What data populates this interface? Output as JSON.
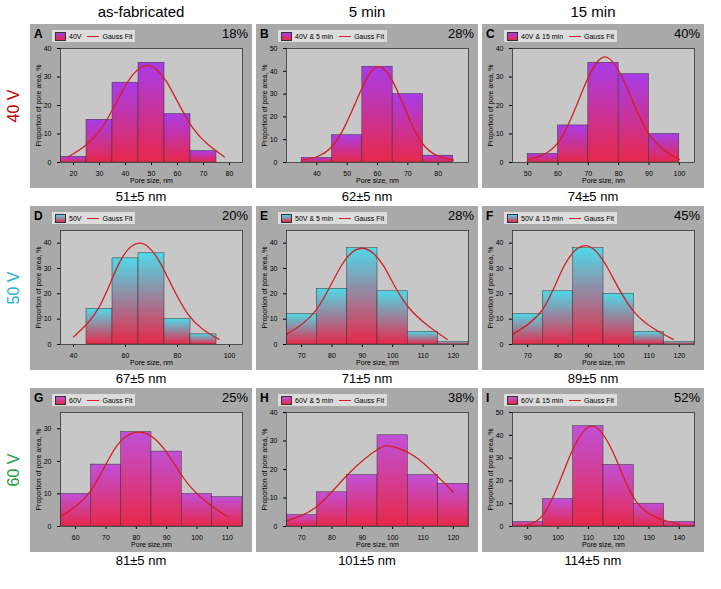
{
  "columns": [
    "as-fabricated",
    "5 min",
    "15 min"
  ],
  "rows": [
    {
      "name": "40 V",
      "color": "#c00000"
    },
    {
      "name": "50 V",
      "color": "#20b0d0"
    },
    {
      "name": "60 V",
      "color": "#20a040"
    }
  ],
  "chart_data": [
    {
      "type": "histogram",
      "label": "A",
      "x_label": "Pore size, nm",
      "y_label": "Proportion of pore area, %",
      "bins": [
        15,
        25,
        35,
        45,
        55,
        65,
        75
      ],
      "xlim": [
        15,
        85
      ],
      "xticks": [
        20,
        30,
        40,
        50,
        60,
        70,
        80
      ],
      "ylim": [
        0,
        40
      ],
      "yticks": [
        0,
        10,
        20,
        30,
        40
      ],
      "legend": "top",
      "series": [
        {
          "name": "40V",
          "type": "bar",
          "color": "#a83ce8",
          "values": [
            2,
            15,
            28,
            35,
            17,
            4
          ]
        },
        {
          "name": "Gauss Fit",
          "type": "line",
          "color": "#d42020",
          "x": [
            18,
            30,
            40,
            48,
            56,
            66,
            78
          ],
          "values": [
            2,
            11,
            27,
            34,
            28,
            12,
            2
          ]
        }
      ],
      "annotation": "18%",
      "caption": "51±5 nm"
    },
    {
      "type": "histogram",
      "label": "B",
      "x_label": "Pore size, nm",
      "y_label": "Proportion of pore area, %",
      "bins": [
        35,
        45,
        55,
        65,
        75,
        85
      ],
      "xlim": [
        30,
        90
      ],
      "xticks": [
        40,
        50,
        60,
        70,
        80
      ],
      "ylim": [
        0,
        50
      ],
      "yticks": [
        0,
        10,
        20,
        30,
        40,
        50
      ],
      "legend": "top",
      "series": [
        {
          "name": "40V & 5 min",
          "type": "bar",
          "color": "#a83ce8",
          "values": [
            2,
            12,
            42,
            30,
            3
          ]
        },
        {
          "name": "Gauss Fit",
          "type": "line",
          "color": "#d42020",
          "x": [
            35,
            45,
            53,
            60,
            67,
            75,
            85
          ],
          "values": [
            1,
            7,
            27,
            42,
            30,
            8,
            1
          ]
        }
      ],
      "annotation": "28%",
      "caption": "62±5 nm"
    },
    {
      "type": "histogram",
      "label": "C",
      "x_label": "Pore size, nm",
      "y_label": "Proportion of pore area, %",
      "bins": [
        50,
        60,
        70,
        80,
        90,
        100
      ],
      "xlim": [
        45,
        105
      ],
      "xticks": [
        50,
        60,
        70,
        80,
        90,
        100
      ],
      "ylim": [
        0,
        40
      ],
      "yticks": [
        0,
        10,
        20,
        30,
        40
      ],
      "legend": "top",
      "series": [
        {
          "name": "40V & 15 min",
          "type": "bar",
          "color": "#a83ce8",
          "values": [
            3,
            13,
            35,
            31,
            10
          ]
        },
        {
          "name": "Gauss Fit",
          "type": "line",
          "color": "#d42020",
          "x": [
            50,
            60,
            68,
            75,
            82,
            90,
            100
          ],
          "values": [
            1,
            7,
            25,
            37,
            28,
            10,
            1
          ]
        }
      ],
      "annotation": "40%",
      "caption": "74±5 nm"
    },
    {
      "type": "histogram",
      "label": "D",
      "x_label": "Pore size, nm",
      "y_label": "Proportion of pore area, %",
      "bins": [
        45,
        55,
        65,
        75,
        85,
        95
      ],
      "xlim": [
        35,
        105
      ],
      "xticks": [
        40,
        60,
        80,
        100
      ],
      "ylim": [
        0,
        45
      ],
      "yticks": [
        0,
        10,
        20,
        30,
        40
      ],
      "legend": "top",
      "series": [
        {
          "name": "50V",
          "type": "bar",
          "color": "#4fd8e8",
          "values": [
            14,
            34,
            36,
            10,
            4
          ]
        },
        {
          "name": "Gauss Fit",
          "type": "line",
          "color": "#d42020",
          "x": [
            40,
            50,
            58,
            66,
            74,
            84,
            96
          ],
          "values": [
            3,
            15,
            33,
            40,
            31,
            12,
            2
          ]
        }
      ],
      "annotation": "20%",
      "caption": "67±5 nm"
    },
    {
      "type": "histogram",
      "label": "E",
      "x_label": "Pore size, nm",
      "y_label": "Proportion of pore area, %",
      "bins": [
        65,
        75,
        85,
        95,
        105,
        115,
        125
      ],
      "xlim": [
        65,
        125
      ],
      "xticks": [
        70,
        80,
        90,
        100,
        110,
        120
      ],
      "ylim": [
        0,
        45
      ],
      "yticks": [
        0,
        10,
        20,
        30,
        40
      ],
      "legend": "top",
      "series": [
        {
          "name": "50V & 5 min",
          "type": "bar",
          "color": "#4fd8e8",
          "values": [
            12,
            22,
            38,
            21,
            5,
            1
          ]
        },
        {
          "name": "Gauss Fit",
          "type": "line",
          "color": "#d42020",
          "x": [
            65,
            75,
            83,
            90,
            97,
            105,
            118
          ],
          "values": [
            4,
            14,
            31,
            38,
            31,
            15,
            2
          ]
        }
      ],
      "annotation": "28%",
      "caption": "71±5 nm"
    },
    {
      "type": "histogram",
      "label": "F",
      "x_label": "Pore size, nm",
      "y_label": "Proportion of pore area, %",
      "bins": [
        65,
        75,
        85,
        95,
        105,
        115,
        125
      ],
      "xlim": [
        65,
        125
      ],
      "xticks": [
        70,
        80,
        90,
        100,
        110,
        120
      ],
      "ylim": [
        0,
        45
      ],
      "yticks": [
        0,
        10,
        20,
        30,
        40
      ],
      "legend": "top",
      "series": [
        {
          "name": "50V & 15 min",
          "type": "bar",
          "color": "#4fd8e8",
          "values": [
            12,
            21,
            38,
            20,
            5,
            1
          ]
        },
        {
          "name": "Gauss Fit",
          "type": "line",
          "color": "#d42020",
          "x": [
            65,
            75,
            82,
            89,
            96,
            105,
            118
          ],
          "values": [
            4,
            14,
            31,
            39,
            31,
            13,
            2
          ]
        }
      ],
      "annotation": "45%",
      "caption": "89±5 nm"
    },
    {
      "type": "histogram",
      "label": "G",
      "x_label": "Pore size,nm",
      "y_label": "Proportion of pore area, %",
      "bins": [
        55,
        65,
        75,
        85,
        95,
        105,
        115
      ],
      "xlim": [
        55,
        115
      ],
      "xticks": [
        60,
        70,
        80,
        90,
        100,
        110
      ],
      "ylim": [
        0,
        35
      ],
      "yticks": [
        0,
        10,
        20,
        30
      ],
      "legend": "top",
      "series": [
        {
          "name": "60V",
          "type": "bar",
          "color": "#c050d8",
          "values": [
            10,
            19,
            29,
            23,
            10,
            9
          ]
        },
        {
          "name": "Gauss Fit",
          "type": "line",
          "color": "#d42020",
          "x": [
            55,
            65,
            73,
            81,
            89,
            98,
            110
          ],
          "values": [
            3,
            11,
            24,
            29,
            24,
            12,
            3
          ]
        }
      ],
      "annotation": "25%",
      "caption": "81±5 nm"
    },
    {
      "type": "histogram",
      "label": "H",
      "x_label": "Pore size, nm",
      "y_label": "Proportion of pore area, %",
      "bins": [
        65,
        75,
        85,
        95,
        105,
        115,
        125
      ],
      "xlim": [
        65,
        125
      ],
      "xticks": [
        70,
        80,
        90,
        100,
        110,
        120
      ],
      "ylim": [
        0,
        40
      ],
      "yticks": [
        0,
        10,
        20,
        30,
        40
      ],
      "legend": "top",
      "series": [
        {
          "name": "60V & 5 min",
          "type": "bar",
          "color": "#c050d8",
          "values": [
            4,
            12,
            18,
            32,
            18,
            15
          ]
        },
        {
          "name": "Gauss Fit",
          "type": "line",
          "color": "#d42020",
          "x": [
            65,
            75,
            85,
            95,
            100,
            108,
            120
          ],
          "values": [
            2,
            7,
            18,
            27,
            28,
            24,
            12
          ]
        }
      ],
      "annotation": "38%",
      "caption": "101±5 nm"
    },
    {
      "type": "histogram",
      "label": "I",
      "x_label": "Pore size, nm",
      "y_label": "Proportion of pore area, %",
      "bins": [
        85,
        95,
        105,
        115,
        125,
        135,
        145
      ],
      "xlim": [
        85,
        145
      ],
      "xticks": [
        90,
        100,
        110,
        120,
        130,
        140
      ],
      "ylim": [
        0,
        50
      ],
      "yticks": [
        0,
        10,
        20,
        30,
        40,
        50
      ],
      "legend": "top",
      "series": [
        {
          "name": "60V & 15 min",
          "type": "bar",
          "color": "#c050d8",
          "values": [
            2,
            12,
            44,
            27,
            10,
            2
          ]
        },
        {
          "name": "Gauss Fit",
          "type": "line",
          "color": "#d42020",
          "x": [
            85,
            95,
            103,
            111,
            119,
            127,
            140
          ],
          "values": [
            0,
            5,
            28,
            44,
            30,
            9,
            1
          ]
        }
      ],
      "annotation": "52%",
      "caption": "114±5 nm"
    }
  ]
}
